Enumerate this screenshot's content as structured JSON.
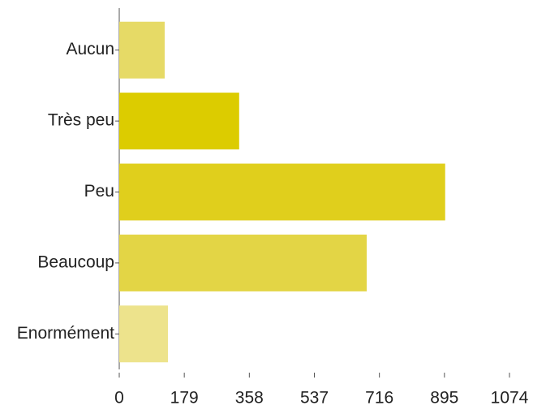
{
  "chart_data": {
    "type": "hbar",
    "categories": [
      "Aucun",
      "Très peu",
      "Peu",
      "Beaucoup",
      "Enormément"
    ],
    "values": [
      125,
      330,
      897,
      681,
      134
    ],
    "colors": [
      "#e6da66",
      "#dccc00",
      "#e0cf1c",
      "#e3d545",
      "#ede38c"
    ],
    "xlim": [
      0,
      1074
    ],
    "xticks": [
      0,
      179,
      358,
      537,
      716,
      895,
      1074
    ]
  }
}
